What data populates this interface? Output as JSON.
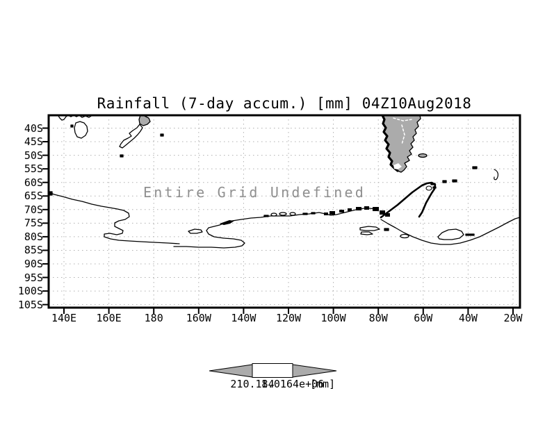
{
  "title": "Rainfall (7-day accum.) [mm] 04Z10Aug2018",
  "plot": {
    "undefined_note": "Entire Grid Undefined",
    "y_axis": {
      "labels": [
        "40S",
        "45S",
        "50S",
        "55S",
        "60S",
        "65S",
        "70S",
        "75S",
        "80S",
        "85S",
        "90S",
        "95S",
        "100S",
        "105S"
      ]
    },
    "x_axis": {
      "labels": [
        "140E",
        "160E",
        "180",
        "160W",
        "140W",
        "120W",
        "100W",
        "80W",
        "60W",
        "40W",
        "20W"
      ]
    },
    "colorbar": {
      "left_label": "210.184",
      "right_label": "1.0164e+06",
      "unit": "[mm]",
      "arrow_color": "#ababab",
      "box_color": "#ffffff"
    }
  },
  "colors": {
    "background": "#ffffff",
    "frame": "#000000",
    "grid": "#b0b0b0",
    "land_shade": "#ababab",
    "undefined_text": "#8f8f8f"
  },
  "chart_data": {
    "type": "heatmap",
    "title": "Rainfall (7-day accum.) [mm] 04Z10Aug2018",
    "variable": "Rainfall (7-day accum.)",
    "units": "mm",
    "valid_time": "04Z10Aug2018",
    "x_ticks": [
      "140E",
      "160E",
      "180",
      "160W",
      "140W",
      "120W",
      "100W",
      "80W",
      "60W",
      "40W",
      "20W"
    ],
    "y_ticks": [
      "40S",
      "45S",
      "50S",
      "55S",
      "60S",
      "65S",
      "70S",
      "75S",
      "80S",
      "85S",
      "90S",
      "95S",
      "100S",
      "105S"
    ],
    "values": "undefined",
    "annotation": "Entire Grid Undefined",
    "grid": true,
    "legend_position": "bottom-center",
    "colorbar": {
      "labels": [
        "210.184",
        "1.0164e+06"
      ],
      "unit": "[mm]"
    }
  }
}
